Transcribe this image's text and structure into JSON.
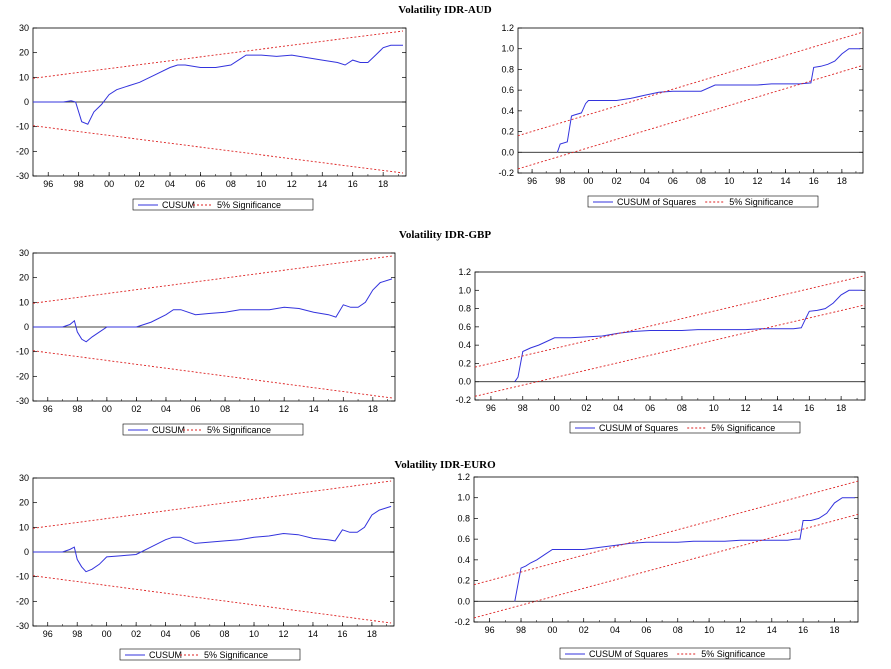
{
  "titles": [
    "Volatility IDR-AUD",
    "Volatility IDR-GBP",
    "Volatility IDR-EURO"
  ],
  "colors": {
    "series": "#3333dd",
    "bounds": "#dd2222",
    "zero": "#000000",
    "frame": "#000000"
  },
  "chart_data": [
    {
      "type": "line",
      "row": 0,
      "kind": "cusum",
      "xlim": [
        1995.0,
        2019.5
      ],
      "ylim": [
        -30,
        30
      ],
      "x_ticks": [
        "96",
        "98",
        "00",
        "02",
        "04",
        "06",
        "08",
        "10",
        "12",
        "14",
        "16",
        "18"
      ],
      "y_ticks": [
        "30",
        "20",
        "10",
        "0",
        "-10",
        "-20",
        "-30"
      ],
      "legend": [
        "CUSUM",
        "5% Significance"
      ],
      "series": [
        {
          "x": [
            1995,
            1997,
            1997.5,
            1997.8,
            1998.2,
            1998.6,
            1999,
            1999.5,
            2000,
            2000.5,
            2001,
            2002,
            2003,
            2004,
            2004.5,
            2005,
            2006,
            2007,
            2008,
            2008.5,
            2009,
            2010,
            2011,
            2012,
            2013,
            2014,
            2015,
            2015.5,
            2016,
            2016.5,
            2017,
            2017.5,
            2018,
            2018.5,
            2019.3
          ],
          "y": [
            0,
            0,
            0.5,
            0,
            -8,
            -9,
            -4,
            -1,
            3,
            5,
            6,
            8,
            11,
            14,
            15,
            15,
            14,
            14,
            15,
            17,
            19,
            19,
            18.5,
            19,
            18,
            17,
            16,
            15,
            17,
            16,
            16,
            19,
            22,
            23,
            23
          ]
        },
        {
          "x": [
            1995,
            2019.3
          ],
          "y": [
            9.6,
            28.8
          ]
        },
        {
          "x": [
            1995,
            2019.3
          ],
          "y": [
            -9.6,
            -28.8
          ]
        }
      ]
    },
    {
      "type": "line",
      "row": 0,
      "kind": "cusumsq",
      "xlim": [
        1995.0,
        2019.5
      ],
      "ylim": [
        -0.2,
        1.2
      ],
      "x_ticks": [
        "96",
        "98",
        "00",
        "02",
        "04",
        "06",
        "08",
        "10",
        "12",
        "14",
        "16",
        "18"
      ],
      "y_ticks": [
        "1.2",
        "1.0",
        "0.8",
        "0.6",
        "0.4",
        "0.2",
        "0.0",
        "-0.2"
      ],
      "legend": [
        "CUSUM of Squares",
        "5% Significance"
      ],
      "series": [
        {
          "x": [
            1997.8,
            1998,
            1998.5,
            1998.8,
            1999,
            1999.5,
            1999.8,
            2000,
            2001,
            2002,
            2003,
            2004,
            2005,
            2006,
            2007,
            2008,
            2009,
            2010,
            2011,
            2012,
            2013,
            2014,
            2015,
            2015.8,
            2016,
            2016.5,
            2017,
            2017.5,
            2018,
            2018.5,
            2019.3
          ],
          "y": [
            0,
            0.08,
            0.1,
            0.35,
            0.36,
            0.38,
            0.47,
            0.5,
            0.5,
            0.5,
            0.52,
            0.55,
            0.58,
            0.59,
            0.59,
            0.59,
            0.65,
            0.65,
            0.65,
            0.65,
            0.66,
            0.66,
            0.66,
            0.67,
            0.82,
            0.83,
            0.85,
            0.88,
            0.95,
            1.0,
            1.0
          ]
        },
        {
          "x": [
            1995,
            2019.5
          ],
          "y": [
            0.16,
            1.16
          ]
        },
        {
          "x": [
            1995,
            2019.5
          ],
          "y": [
            -0.16,
            0.84
          ]
        }
      ]
    },
    {
      "type": "line",
      "row": 1,
      "kind": "cusum",
      "xlim": [
        1995.0,
        2019.5
      ],
      "ylim": [
        -30,
        30
      ],
      "x_ticks": [
        "96",
        "98",
        "00",
        "02",
        "04",
        "06",
        "08",
        "10",
        "12",
        "14",
        "16",
        "18"
      ],
      "y_ticks": [
        "30",
        "20",
        "10",
        "0",
        "-10",
        "-20",
        "-30"
      ],
      "legend": [
        "CUSUM",
        "5% Significance"
      ],
      "series": [
        {
          "x": [
            1995,
            1997,
            1997.5,
            1997.8,
            1998,
            1998.3,
            1998.6,
            1999,
            1999.5,
            2000,
            2001,
            2002,
            2003,
            2004,
            2004.5,
            2005,
            2006,
            2007,
            2008,
            2009,
            2010,
            2011,
            2012,
            2013,
            2014,
            2015,
            2015.5,
            2016,
            2016.5,
            2017,
            2017.5,
            2018,
            2018.5,
            2019.3
          ],
          "y": [
            0,
            0,
            1,
            2.5,
            -2,
            -5,
            -6,
            -4,
            -2,
            0,
            0,
            0,
            2,
            5,
            7,
            7,
            5,
            5.5,
            6,
            7,
            7,
            7,
            8,
            7.5,
            6,
            5,
            4,
            9,
            8,
            8,
            10,
            15,
            18,
            19.5
          ]
        },
        {
          "x": [
            1995,
            2019.3
          ],
          "y": [
            9.6,
            28.8
          ]
        },
        {
          "x": [
            1995,
            2019.3
          ],
          "y": [
            -9.6,
            -28.8
          ]
        }
      ]
    },
    {
      "type": "line",
      "row": 1,
      "kind": "cusumsq",
      "xlim": [
        1995.0,
        2019.5
      ],
      "ylim": [
        -0.2,
        1.2
      ],
      "x_ticks": [
        "96",
        "98",
        "00",
        "02",
        "04",
        "06",
        "08",
        "10",
        "12",
        "14",
        "16",
        "18"
      ],
      "y_ticks": [
        "1.2",
        "1.0",
        "0.8",
        "0.6",
        "0.4",
        "0.2",
        "0.0",
        "-0.2"
      ],
      "legend": [
        "CUSUM of Squares",
        "5% Significance"
      ],
      "series": [
        {
          "x": [
            1997.5,
            1997.7,
            1998,
            1998.5,
            1999,
            1999.5,
            2000,
            2001,
            2002,
            2003,
            2004,
            2005,
            2006,
            2007,
            2008,
            2009,
            2010,
            2011,
            2012,
            2013,
            2014,
            2015,
            2015.5,
            2015.8,
            2016,
            2016.5,
            2017,
            2017.5,
            2018,
            2018.5,
            2019.3
          ],
          "y": [
            0,
            0.05,
            0.33,
            0.37,
            0.4,
            0.44,
            0.48,
            0.48,
            0.49,
            0.5,
            0.53,
            0.55,
            0.56,
            0.56,
            0.56,
            0.57,
            0.57,
            0.57,
            0.57,
            0.58,
            0.58,
            0.58,
            0.59,
            0.7,
            0.77,
            0.78,
            0.8,
            0.86,
            0.95,
            1.0,
            1.0
          ]
        },
        {
          "x": [
            1995,
            2019.5
          ],
          "y": [
            0.16,
            1.16
          ]
        },
        {
          "x": [
            1995,
            2019.5
          ],
          "y": [
            -0.16,
            0.84
          ]
        }
      ]
    },
    {
      "type": "line",
      "row": 2,
      "kind": "cusum",
      "xlim": [
        1995.0,
        2019.5
      ],
      "ylim": [
        -30,
        30
      ],
      "x_ticks": [
        "96",
        "98",
        "00",
        "02",
        "04",
        "06",
        "08",
        "10",
        "12",
        "14",
        "16",
        "18"
      ],
      "y_ticks": [
        "30",
        "20",
        "10",
        "0",
        "-10",
        "-20",
        "-30"
      ],
      "legend": [
        "CUSUM",
        "5% Significance"
      ],
      "series": [
        {
          "x": [
            1995,
            1997,
            1997.5,
            1997.8,
            1998,
            1998.3,
            1998.6,
            1999,
            1999.5,
            2000,
            2001,
            2002,
            2003,
            2004,
            2004.5,
            2005,
            2006,
            2007,
            2008,
            2009,
            2010,
            2011,
            2012,
            2013,
            2014,
            2015,
            2015.5,
            2016,
            2016.5,
            2017,
            2017.5,
            2018,
            2018.5,
            2019.3
          ],
          "y": [
            0,
            0,
            1,
            2,
            -3,
            -6,
            -8,
            -7,
            -5,
            -2,
            -1.5,
            -1,
            2,
            5,
            6,
            6,
            3.5,
            4,
            4.5,
            5,
            6,
            6.5,
            7.5,
            7,
            5.5,
            5,
            4.5,
            9,
            8,
            8,
            10,
            15,
            17,
            18.5
          ]
        },
        {
          "x": [
            1995,
            2019.3
          ],
          "y": [
            9.6,
            28.8
          ]
        },
        {
          "x": [
            1995,
            2019.3
          ],
          "y": [
            -9.6,
            -28.8
          ]
        }
      ]
    },
    {
      "type": "line",
      "row": 2,
      "kind": "cusumsq",
      "xlim": [
        1995.0,
        2019.5
      ],
      "ylim": [
        -0.2,
        1.2
      ],
      "x_ticks": [
        "96",
        "98",
        "00",
        "02",
        "04",
        "06",
        "08",
        "10",
        "12",
        "14",
        "16",
        "18"
      ],
      "y_ticks": [
        "1.2",
        "1.0",
        "0.8",
        "0.6",
        "0.4",
        "0.2",
        "0.0",
        "-0.2"
      ],
      "legend": [
        "CUSUM of Squares",
        "5% Significance"
      ],
      "series": [
        {
          "x": [
            1997.6,
            1998,
            1998.3,
            1998.6,
            1999,
            1999.5,
            2000,
            2001,
            2002,
            2003,
            2004,
            2005,
            2006,
            2007,
            2008,
            2009,
            2010,
            2011,
            2012,
            2013,
            2014,
            2015,
            2015.5,
            2015.8,
            2016,
            2016.5,
            2017,
            2017.5,
            2018,
            2018.5,
            2019.3
          ],
          "y": [
            0,
            0.32,
            0.34,
            0.37,
            0.4,
            0.45,
            0.5,
            0.5,
            0.5,
            0.52,
            0.54,
            0.56,
            0.57,
            0.57,
            0.57,
            0.58,
            0.58,
            0.58,
            0.59,
            0.59,
            0.59,
            0.59,
            0.6,
            0.6,
            0.78,
            0.78,
            0.8,
            0.85,
            0.95,
            1.0,
            1.0
          ]
        },
        {
          "x": [
            1995,
            2019.5
          ],
          "y": [
            0.16,
            1.16
          ]
        },
        {
          "x": [
            1995,
            2019.5
          ],
          "y": [
            -0.16,
            0.84
          ]
        }
      ]
    }
  ]
}
